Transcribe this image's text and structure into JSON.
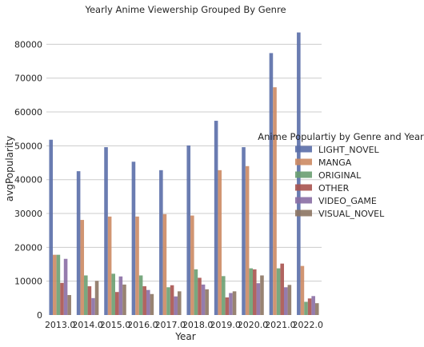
{
  "chart_data": {
    "type": "bar",
    "title": "Yearly Anime Viewership Grouped By Genre",
    "xlabel": "Year",
    "ylabel": "avgPopularity",
    "ylim": [
      0,
      86000
    ],
    "yticks": [
      0,
      10000,
      20000,
      30000,
      40000,
      50000,
      60000,
      70000,
      80000
    ],
    "grid": "horizontal",
    "legend_placement": "center-right",
    "legend_title": "Anime Populartiy by Genre and Year",
    "categories": [
      "2013.0",
      "2014.0",
      "2015.0",
      "2016.0",
      "2017.0",
      "2018.0",
      "2019.0",
      "2020.0",
      "2021.0",
      "2022.0"
    ],
    "series": [
      {
        "name": "LIGHT_NOVEL",
        "color": "#5a6ea8",
        "values": [
          51800,
          42500,
          49600,
          45300,
          42800,
          50100,
          57400,
          49600,
          77400,
          83500
        ]
      },
      {
        "name": "MANGA",
        "color": "#cc8963",
        "values": [
          17800,
          28100,
          29100,
          29100,
          29800,
          29400,
          42800,
          44000,
          67300,
          14500
        ]
      },
      {
        "name": "ORIGINAL",
        "color": "#6a9e71",
        "values": [
          17800,
          11700,
          12200,
          11700,
          8200,
          13500,
          11500,
          13800,
          13800,
          3900
        ]
      },
      {
        "name": "OTHER",
        "color": "#a9534f",
        "values": [
          9500,
          8500,
          6800,
          8500,
          8800,
          11000,
          5200,
          13500,
          15200,
          4900
        ]
      },
      {
        "name": "VIDEO_GAME",
        "color": "#8a6ea4",
        "values": [
          16600,
          5000,
          11400,
          7400,
          5500,
          9000,
          6500,
          9400,
          8200,
          5600
        ]
      },
      {
        "name": "VISUAL_NOVEL",
        "color": "#8d7663",
        "values": [
          5900,
          10100,
          9000,
          6200,
          7000,
          7600,
          7000,
          11700,
          8900,
          3500
        ]
      }
    ]
  }
}
